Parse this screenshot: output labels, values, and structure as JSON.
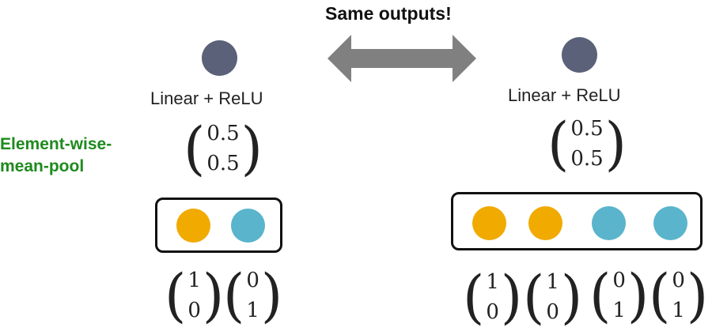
{
  "title": "Same outputs!",
  "pool_label": "Element-wise-\nmean-pool",
  "colors": {
    "node": "#5a6178",
    "orange": "#f0aa00",
    "blue": "#5ab4cc",
    "pool_label": "#1e8a1e"
  },
  "left": {
    "layer_label": "Linear + ReLU",
    "output": [
      "0.5",
      "0.5"
    ],
    "inputs": [
      [
        "1",
        "0"
      ],
      [
        "0",
        "1"
      ]
    ]
  },
  "right": {
    "layer_label": "Linear + ReLU",
    "output": [
      "0.5",
      "0.5"
    ],
    "inputs": [
      [
        "1",
        "0"
      ],
      [
        "1",
        "0"
      ],
      [
        "0",
        "1"
      ],
      [
        "0",
        "1"
      ]
    ]
  }
}
